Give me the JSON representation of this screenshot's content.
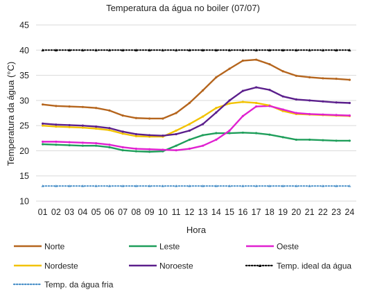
{
  "chart_data": {
    "type": "line",
    "title": "Temperatura da água no boiler (07/07)",
    "xlabel": "Hora",
    "ylabel": "Temperatura da água (°C)",
    "ylim": [
      10,
      45
    ],
    "yticks": [
      10,
      15,
      20,
      25,
      30,
      35,
      40,
      45
    ],
    "grid": "horizontal",
    "legend_position": "bottom",
    "categories": [
      "01",
      "02",
      "03",
      "04",
      "05",
      "06",
      "07",
      "08",
      "09",
      "10",
      "11",
      "12",
      "13",
      "14",
      "15",
      "16",
      "17",
      "18",
      "19",
      "20",
      "21",
      "22",
      "23",
      "24"
    ],
    "series": [
      {
        "name": "Norte",
        "color": "#b5651d",
        "style": "solid",
        "values": [
          29.2,
          28.9,
          28.8,
          28.7,
          28.5,
          28.0,
          27.0,
          26.5,
          26.4,
          26.4,
          27.5,
          29.5,
          32.0,
          34.6,
          36.3,
          37.9,
          38.1,
          37.2,
          35.8,
          34.9,
          34.6,
          34.4,
          34.3,
          34.1
        ]
      },
      {
        "name": "Leste",
        "color": "#1e9e5a",
        "style": "solid",
        "values": [
          21.3,
          21.2,
          21.1,
          21.0,
          21.0,
          20.7,
          20.1,
          19.9,
          19.8,
          19.9,
          21.0,
          22.2,
          23.1,
          23.5,
          23.5,
          23.6,
          23.5,
          23.2,
          22.7,
          22.2,
          22.2,
          22.1,
          22.0,
          22.0
        ]
      },
      {
        "name": "Oeste",
        "color": "#e020d0",
        "style": "solid",
        "values": [
          21.8,
          21.8,
          21.7,
          21.6,
          21.5,
          21.2,
          20.7,
          20.4,
          20.3,
          20.2,
          20.1,
          20.4,
          21.0,
          22.2,
          24.0,
          26.9,
          28.8,
          28.9,
          null,
          null,
          null,
          null,
          null,
          null
        ]
      },
      {
        "name": "Nordeste",
        "color": "#f2c200",
        "style": "solid",
        "values": [
          25.0,
          24.8,
          24.7,
          24.6,
          24.4,
          24.1,
          23.4,
          22.9,
          22.8,
          22.8,
          24.0,
          25.3,
          26.8,
          28.5,
          29.4,
          29.7,
          29.5,
          29.0,
          27.9,
          27.3,
          27.2,
          27.1,
          27.0,
          26.9
        ]
      },
      {
        "name": "Noroeste",
        "color": "#5b1f8c",
        "style": "solid",
        "values": [
          25.4,
          25.2,
          25.1,
          25.0,
          24.8,
          24.5,
          23.8,
          23.3,
          23.1,
          23.0,
          23.3,
          24.0,
          25.3,
          27.6,
          30.0,
          31.9,
          32.6,
          32.1,
          30.8,
          30.2,
          30.0,
          29.8,
          29.6,
          29.5
        ]
      },
      {
        "name": "Oeste",
        "color": "#e020d0",
        "style": "solid",
        "legend": false,
        "values": [
          null,
          null,
          null,
          null,
          null,
          null,
          null,
          null,
          null,
          null,
          null,
          null,
          null,
          null,
          null,
          null,
          null,
          28.9,
          28.2,
          27.5,
          27.3,
          27.2,
          27.1,
          27.0
        ]
      },
      {
        "name": "Temp. ideal da água",
        "color": "#000000",
        "style": "dotted",
        "values": [
          40,
          40,
          40,
          40,
          40,
          40,
          40,
          40,
          40,
          40,
          40,
          40,
          40,
          40,
          40,
          40,
          40,
          40,
          40,
          40,
          40,
          40,
          40,
          40
        ]
      },
      {
        "name": "Temp. da água fria",
        "color": "#4a90c8",
        "style": "dotted",
        "values": [
          13,
          13,
          13,
          13,
          13,
          13,
          13,
          13,
          13,
          13,
          13,
          13,
          13,
          13,
          13,
          13,
          13,
          13,
          13,
          13,
          13,
          13,
          13,
          13
        ]
      }
    ]
  }
}
